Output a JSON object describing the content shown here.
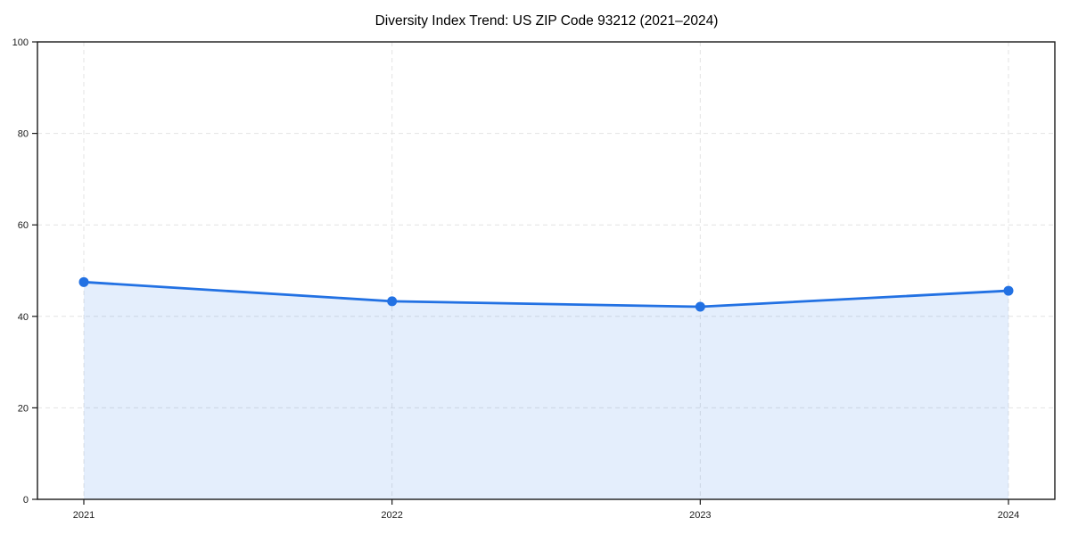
{
  "page": {
    "background": "#ffffff"
  },
  "chart_data": {
    "type": "line",
    "title": "Diversity Index Trend: US ZIP Code 93212 (2021–2024)",
    "categories": [
      "2021",
      "2022",
      "2023",
      "2024"
    ],
    "series": [
      {
        "name": "Diversity Index",
        "values": [
          47.5,
          43.3,
          42.1,
          45.6
        ]
      }
    ],
    "xlabel": "",
    "ylabel": "",
    "ylim": [
      0,
      100
    ],
    "yticks": [
      0,
      20,
      40,
      60,
      80,
      100
    ],
    "grid": "dashed-both-directions",
    "area_fill": true,
    "legend_position": "none",
    "colors": {
      "line": "#2271e3",
      "marker": "#2271e3",
      "area_fill_opacity": 0.12,
      "gridline": "#e3e3e3",
      "axis": "#1a1a1a",
      "tick_label": "#1a1a1a",
      "title": "#000000",
      "plot_background": "#ffffff"
    }
  }
}
